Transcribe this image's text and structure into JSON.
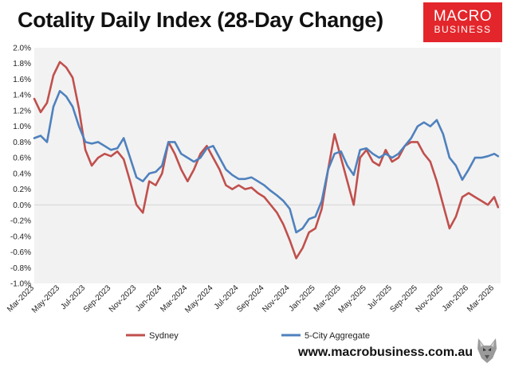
{
  "header": {
    "title": "Cotality Daily Index (28-Day Change)"
  },
  "logo": {
    "line1": "MACRO",
    "line2": "BUSINESS"
  },
  "footer": {
    "website": "www.macrobusiness.com.au"
  },
  "chart_data": {
    "type": "line",
    "title": "Cotality Daily Index (28-Day Change)",
    "xlabel": "",
    "ylabel": "",
    "ylim": [
      -0.01,
      0.02
    ],
    "yticks": [
      "2.0%",
      "1.8%",
      "1.6%",
      "1.4%",
      "1.2%",
      "1.0%",
      "0.8%",
      "0.6%",
      "0.4%",
      "0.2%",
      "0.0%",
      "-0.2%",
      "-0.4%",
      "-0.6%",
      "-0.8%",
      "-1.0%"
    ],
    "ytick_values": [
      0.02,
      0.018,
      0.016,
      0.014,
      0.012,
      0.01,
      0.008,
      0.006,
      0.004,
      0.002,
      0.0,
      -0.002,
      -0.004,
      -0.006,
      -0.008,
      -0.01
    ],
    "xlim": [
      0,
      36.5
    ],
    "xticks": [
      "Mar-2023",
      "May-2023",
      "Jul-2023",
      "Sep-2023",
      "Nov-2023",
      "Jan-2024",
      "Mar-2024",
      "May-2024",
      "Jul-2024",
      "Sep-2024",
      "Nov-2024",
      "Jan-2025",
      "Mar-2025",
      "May-2025",
      "Jul-2025",
      "Sep-2025",
      "Nov-2025",
      "Jan-2026",
      "Mar-2026"
    ],
    "xtick_values": [
      0,
      2,
      4,
      6,
      8,
      10,
      12,
      14,
      16,
      18,
      20,
      22,
      24,
      26,
      28,
      30,
      32,
      34,
      36
    ],
    "zero_line": true,
    "grid": false,
    "legend": "bottom",
    "series": [
      {
        "name": "Sydney",
        "color": "#c0504d",
        "x": [
          0,
          0.5,
          1,
          1.5,
          2,
          2.5,
          3,
          3.5,
          4,
          4.5,
          5,
          5.5,
          6,
          6.5,
          7,
          7.5,
          8,
          8.5,
          9,
          9.5,
          10,
          10.5,
          11,
          11.5,
          12,
          12.5,
          13,
          13.5,
          14,
          14.5,
          15,
          15.5,
          16,
          16.5,
          17,
          17.5,
          18,
          18.5,
          19,
          19.5,
          20,
          20.5,
          21,
          21.5,
          22,
          22.5,
          23,
          23.5,
          24,
          24.5,
          25,
          25.5,
          26,
          26.5,
          27,
          27.5,
          28,
          28.5,
          29,
          29.5,
          30,
          30.5,
          31,
          31.5,
          32,
          32.5,
          33,
          33.5,
          34,
          34.5,
          35,
          35.5,
          36,
          36.3
        ],
        "values": [
          0.0135,
          0.0118,
          0.013,
          0.0165,
          0.0182,
          0.0175,
          0.0162,
          0.0122,
          0.007,
          0.005,
          0.006,
          0.0065,
          0.0062,
          0.0068,
          0.0058,
          0.003,
          0.0,
          -0.001,
          0.003,
          0.0025,
          0.004,
          0.008,
          0.0065,
          0.0045,
          0.003,
          0.0045,
          0.0065,
          0.0075,
          0.006,
          0.0045,
          0.0025,
          0.002,
          0.0025,
          0.002,
          0.0022,
          0.0015,
          0.001,
          0.0,
          -0.001,
          -0.0025,
          -0.0045,
          -0.0068,
          -0.0055,
          -0.0035,
          -0.003,
          -0.0005,
          0.0045,
          0.009,
          0.006,
          0.003,
          0.0,
          0.006,
          0.007,
          0.0055,
          0.005,
          0.007,
          0.0055,
          0.006,
          0.0075,
          0.008,
          0.008,
          0.0065,
          0.0055,
          0.003,
          0.0,
          -0.003,
          -0.0015,
          0.001,
          0.0015,
          0.001,
          0.0005,
          0.0,
          0.001,
          -0.0003
        ]
      },
      {
        "name": "5-City Aggregate",
        "color": "#4f81bd",
        "x": [
          0,
          0.5,
          1,
          1.5,
          2,
          2.5,
          3,
          3.5,
          4,
          4.5,
          5,
          5.5,
          6,
          6.5,
          7,
          7.5,
          8,
          8.5,
          9,
          9.5,
          10,
          10.5,
          11,
          11.5,
          12,
          12.5,
          13,
          13.5,
          14,
          14.5,
          15,
          15.5,
          16,
          16.5,
          17,
          17.5,
          18,
          18.5,
          19,
          19.5,
          20,
          20.5,
          21,
          21.5,
          22,
          22.5,
          23,
          23.5,
          24,
          24.5,
          25,
          25.5,
          26,
          26.5,
          27,
          27.5,
          28,
          28.5,
          29,
          29.5,
          30,
          30.5,
          31,
          31.5,
          32,
          32.5,
          33,
          33.5,
          34,
          34.5,
          35,
          35.5,
          36,
          36.3
        ],
        "values": [
          0.0085,
          0.0088,
          0.008,
          0.0125,
          0.0145,
          0.0138,
          0.0125,
          0.01,
          0.008,
          0.0078,
          0.008,
          0.0075,
          0.007,
          0.0072,
          0.0085,
          0.006,
          0.0035,
          0.003,
          0.004,
          0.0042,
          0.005,
          0.008,
          0.008,
          0.0065,
          0.006,
          0.0055,
          0.006,
          0.0072,
          0.0075,
          0.006,
          0.0045,
          0.0038,
          0.0033,
          0.0033,
          0.0035,
          0.003,
          0.0025,
          0.0018,
          0.0012,
          0.0005,
          -0.0005,
          -0.0035,
          -0.003,
          -0.0018,
          -0.0015,
          0.0005,
          0.0045,
          0.0065,
          0.0068,
          0.005,
          0.0038,
          0.007,
          0.0072,
          0.0065,
          0.006,
          0.0065,
          0.006,
          0.0065,
          0.0075,
          0.0085,
          0.01,
          0.0105,
          0.01,
          0.0108,
          0.009,
          0.006,
          0.005,
          0.0032,
          0.0045,
          0.006,
          0.006,
          0.0062,
          0.0065,
          0.0062
        ]
      }
    ]
  }
}
